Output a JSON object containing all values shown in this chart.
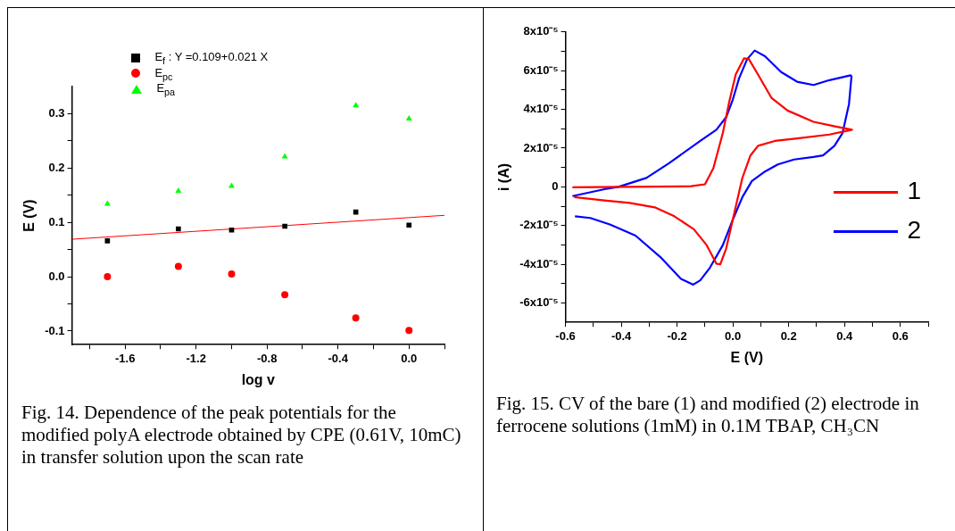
{
  "chart_data": [
    {
      "type": "scatter",
      "xlabel": "log v",
      "ylabel": "E (V)",
      "legend": "top",
      "grid": false,
      "xlim": [
        -1.9,
        0.2
      ],
      "xticks": [
        {
          "value": -1.8,
          "label": null
        },
        -1.6,
        {
          "value": -1.4,
          "label": null
        },
        -1.2,
        {
          "value": -1.0,
          "label": null
        },
        -0.8,
        {
          "value": -0.6,
          "label": null
        },
        -0.4,
        {
          "value": -0.2,
          "label": null
        },
        {
          "value": 0,
          "label": "0.0"
        },
        {
          "value": 0.2,
          "label": null
        }
      ],
      "ylim": [
        -0.125,
        0.35
      ],
      "yticks": [
        -0.1,
        {
          "value": -0.05,
          "label": null
        },
        {
          "value": 0,
          "label": "0.0"
        },
        {
          "value": 0.05,
          "label": null
        },
        0.1,
        {
          "value": 0.15,
          "label": null
        },
        0.2,
        {
          "value": 0.25,
          "label": null
        },
        0.3
      ],
      "x": [
        -1.7,
        -1.3,
        -1.0,
        -0.7,
        -0.3,
        0.0
      ],
      "series": [
        {
          "name": "E$_{f}$ : Y =0.109+0.021 X",
          "color": "#000000",
          "marker": "square",
          "values": [
            0.066,
            0.088,
            0.086,
            0.093,
            0.119,
            0.095
          ]
        },
        {
          "name": "E$_{pc}$",
          "color": "#ff0000",
          "marker": "circle",
          "values": [
            0.0,
            0.019,
            0.005,
            -0.033,
            -0.076,
            -0.099
          ]
        },
        {
          "name": "E$_{pa}$",
          "color": "#00ff00",
          "marker": "triangle",
          "values": [
            0.134,
            0.158,
            0.167,
            0.221,
            0.315,
            0.291
          ]
        },
        {
          "type": "line",
          "color": "#ff0000",
          "marker": "none",
          "x": [
            -1.9,
            0.2
          ],
          "values": [
            0.069,
            0.113
          ]
        }
      ],
      "annotations": [
        "Fig. 14. Dependence of the peak potentials for the modified polyA electrode obtained by CPE (0.61V, 10mC) in transfer solution upon the scan rate"
      ]
    },
    {
      "type": "line",
      "xlabel": "E (V)",
      "ylabel": "i (A)",
      "legend": "bottom right",
      "grid": false,
      "marker": "none",
      "xlim": [
        -0.6,
        0.7
      ],
      "xticks": [
        -0.6,
        {
          "value": -0.5,
          "label": null
        },
        -0.4,
        {
          "value": -0.3,
          "label": null
        },
        -0.2,
        {
          "value": -0.1,
          "label": null
        },
        {
          "value": 0,
          "label": "0.0"
        },
        {
          "value": 0.1,
          "label": null
        },
        0.2,
        {
          "value": 0.3,
          "label": null
        },
        0.4,
        {
          "value": 0.5,
          "label": null
        },
        0.6,
        {
          "value": 0.7,
          "label": null
        }
      ],
      "ylim": [
        -7e-05,
        8e-05
      ],
      "yticks": [
        {
          "value": -6e-05,
          "label": "-6x10⁻⁵"
        },
        {
          "value": -5e-05,
          "label": null
        },
        {
          "value": -4e-05,
          "label": "-4x10⁻⁵"
        },
        {
          "value": -3e-05,
          "label": null
        },
        {
          "value": -2e-05,
          "label": "-2x10⁻⁵"
        },
        {
          "value": -1e-05,
          "label": null
        },
        0,
        {
          "value": 1e-05,
          "label": null
        },
        {
          "value": 2e-05,
          "label": "2x10⁻⁵"
        },
        {
          "value": 3e-05,
          "label": null
        },
        {
          "value": 4e-05,
          "label": "4x10⁻⁵"
        },
        {
          "value": 5e-05,
          "label": null
        },
        {
          "value": 6e-05,
          "label": "6x10⁻⁵"
        },
        {
          "value": 7e-05,
          "label": null
        },
        {
          "value": 8e-05,
          "label": "8x10⁻⁵"
        }
      ],
      "series": [
        {
          "name": "1",
          "color": "#ff0000",
          "x": [
            -0.575,
            -0.15,
            -0.1,
            -0.07,
            -0.036,
            -0.013,
            0.01,
            0.04,
            0.057,
            0.09,
            0.138,
            0.196,
            0.289,
            0.37,
            0.427,
            0.346,
            0.23,
            0.15,
            0.09,
            0.063,
            0.034,
            0.005,
            -0.024,
            -0.045,
            -0.059,
            -0.094,
            -0.14,
            -0.21,
            -0.28,
            -0.37,
            -0.46,
            -0.569
          ],
          "values": [
            -2e-07,
            3e-07,
            1.3e-06,
            9.6e-06,
            2.78e-05,
            4.4e-05,
            5.8e-05,
            6.64e-05,
            6.6e-05,
            5.8e-05,
            4.6e-05,
            3.94e-05,
            3.36e-05,
            3.11e-05,
            2.95e-05,
            2.7e-05,
            2.5e-05,
            2.37e-05,
            2.12e-05,
            1.62e-05,
            4.6e-06,
            -1.36e-05,
            -3.18e-05,
            -4e-05,
            -3.97e-05,
            -3.01e-05,
            -2.19e-05,
            -1.52e-05,
            -1.06e-05,
            -8.3e-06,
            -7e-06,
            -5.3e-06
          ]
        },
        {
          "name": "2",
          "color": "#0000ff",
          "x": [
            -0.575,
            -0.46,
            -0.41,
            -0.31,
            -0.23,
            -0.117,
            -0.059,
            -0.024,
            0.0,
            0.022,
            0.051,
            0.078,
            0.115,
            0.173,
            0.23,
            0.289,
            0.346,
            0.422,
            0.425,
            0.416,
            0.393,
            0.364,
            0.323,
            0.289,
            0.219,
            0.161,
            0.115,
            0.068,
            0.034,
            0.0,
            -0.036,
            -0.082,
            -0.117,
            -0.142,
            -0.186,
            -0.256,
            -0.349,
            -0.441,
            -0.511,
            -0.566
          ],
          "values": [
            -4.8e-06,
            -1.2e-06,
            0.0,
            4.6e-06,
            1.21e-05,
            2.37e-05,
            2.95e-05,
            3.6e-05,
            4.52e-05,
            5.6e-05,
            6.59e-05,
            7.04e-05,
            6.75e-05,
            5.93e-05,
            5.43e-05,
            5.26e-05,
            5.51e-05,
            5.76e-05,
            5.7e-05,
            4.27e-05,
            2.78e-05,
            2.12e-05,
            1.62e-05,
            1.54e-05,
            1.41e-05,
            1.16e-05,
            7.9e-06,
            3e-06,
            -5.3e-06,
            -1.69e-05,
            -3.01e-05,
            -4.17e-05,
            -4.83e-05,
            -5.05e-05,
            -4.75e-05,
            -3.68e-05,
            -2.52e-05,
            -1.94e-05,
            -1.61e-05,
            -1.52e-05
          ]
        }
      ],
      "annotations": [
        "Fig. 15. CV of the bare (1) and modified (2) electrode in ferrocene solutions (1mM) in 0.1M TBAP, CH₃CN"
      ]
    }
  ]
}
